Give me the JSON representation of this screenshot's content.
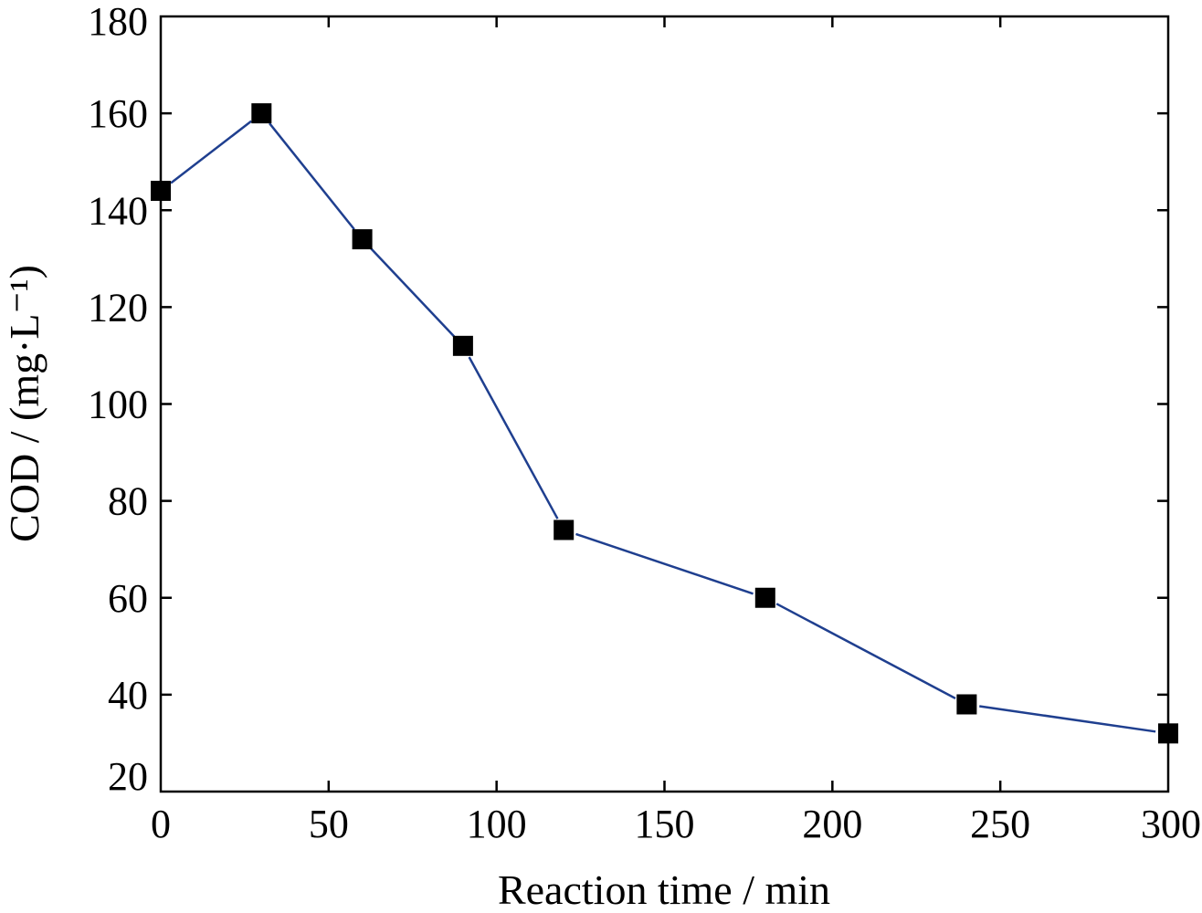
{
  "chart_data": {
    "type": "line",
    "xlabel": "Reaction time / min",
    "ylabel": "COD / (mg·L⁻¹)",
    "xlim": [
      0,
      300
    ],
    "ylim": [
      20,
      180
    ],
    "xticks": [
      0,
      50,
      100,
      150,
      200,
      250,
      300
    ],
    "yticks": [
      20,
      40,
      60,
      80,
      100,
      120,
      140,
      160,
      180
    ],
    "grid": false,
    "legend": "none",
    "series": [
      {
        "x": [
          0,
          30,
          60,
          90,
          120,
          180,
          240,
          300
        ],
        "y": [
          144,
          160,
          134,
          112,
          74,
          60,
          38,
          32
        ],
        "marker": "square",
        "line_color": "#1f3f8f",
        "marker_color": "#000000"
      }
    ]
  }
}
